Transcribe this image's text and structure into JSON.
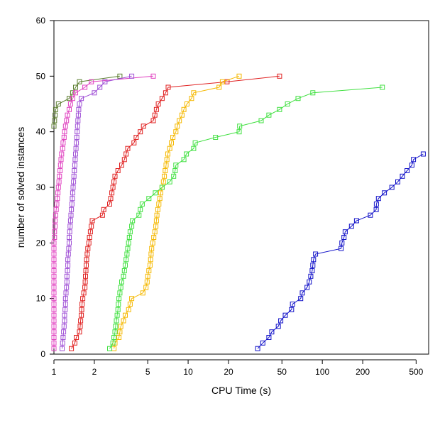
{
  "chart_data": {
    "type": "line",
    "title": "",
    "xlabel": "CPU Time (s)",
    "ylabel": "number of solved instances",
    "x_scale": "log",
    "xlim": [
      1,
      620
    ],
    "ylim": [
      0,
      60
    ],
    "x_ticks": [
      1,
      2,
      5,
      10,
      20,
      50,
      100,
      200,
      500
    ],
    "y_ticks": [
      0,
      10,
      20,
      30,
      40,
      50,
      60
    ],
    "grid": false,
    "legend": "none",
    "marker": "open-square",
    "series": [
      {
        "color": "#5a7d2e",
        "points": [
          [
            1.0,
            41
          ],
          [
            1.01,
            42
          ],
          [
            1.02,
            43
          ],
          [
            1.03,
            44
          ],
          [
            1.08,
            45
          ],
          [
            1.3,
            46
          ],
          [
            1.38,
            47
          ],
          [
            1.45,
            48
          ],
          [
            1.55,
            49
          ],
          [
            3.1,
            50
          ]
        ]
      },
      {
        "color": "#e040c0",
        "points": [
          [
            1.0,
            1
          ],
          [
            1.0,
            2
          ],
          [
            1.0,
            3
          ],
          [
            1.0,
            4
          ],
          [
            1.0,
            5
          ],
          [
            1.0,
            6
          ],
          [
            1.0,
            7
          ],
          [
            1.0,
            8
          ],
          [
            1.0,
            9
          ],
          [
            1.0,
            10
          ],
          [
            1.0,
            11
          ],
          [
            1.0,
            12
          ],
          [
            1.0,
            13
          ],
          [
            1.0,
            14
          ],
          [
            1.0,
            15
          ],
          [
            1.0,
            16
          ],
          [
            1.0,
            17
          ],
          [
            1.0,
            18
          ],
          [
            1.0,
            19
          ],
          [
            1.0,
            20
          ],
          [
            1.01,
            21
          ],
          [
            1.01,
            22
          ],
          [
            1.02,
            23
          ],
          [
            1.02,
            24
          ],
          [
            1.03,
            25
          ],
          [
            1.04,
            26
          ],
          [
            1.05,
            27
          ],
          [
            1.06,
            28
          ],
          [
            1.07,
            29
          ],
          [
            1.08,
            30
          ],
          [
            1.09,
            31
          ],
          [
            1.1,
            32
          ],
          [
            1.11,
            33
          ],
          [
            1.12,
            34
          ],
          [
            1.13,
            35
          ],
          [
            1.14,
            36
          ],
          [
            1.16,
            37
          ],
          [
            1.17,
            38
          ],
          [
            1.19,
            39
          ],
          [
            1.2,
            40
          ],
          [
            1.22,
            41
          ],
          [
            1.24,
            42
          ],
          [
            1.26,
            43
          ],
          [
            1.3,
            44
          ],
          [
            1.33,
            45
          ],
          [
            1.38,
            46
          ],
          [
            1.45,
            47
          ],
          [
            1.7,
            48
          ],
          [
            1.9,
            49
          ],
          [
            5.5,
            50
          ]
        ]
      },
      {
        "color": "#9f4fd6",
        "points": [
          [
            1.15,
            1
          ],
          [
            1.16,
            2
          ],
          [
            1.17,
            3
          ],
          [
            1.18,
            4
          ],
          [
            1.19,
            5
          ],
          [
            1.2,
            6
          ],
          [
            1.2,
            7
          ],
          [
            1.21,
            8
          ],
          [
            1.22,
            9
          ],
          [
            1.22,
            10
          ],
          [
            1.23,
            11
          ],
          [
            1.24,
            12
          ],
          [
            1.25,
            13
          ],
          [
            1.25,
            14
          ],
          [
            1.26,
            15
          ],
          [
            1.27,
            16
          ],
          [
            1.27,
            17
          ],
          [
            1.28,
            18
          ],
          [
            1.29,
            19
          ],
          [
            1.3,
            20
          ],
          [
            1.3,
            21
          ],
          [
            1.31,
            22
          ],
          [
            1.32,
            23
          ],
          [
            1.33,
            24
          ],
          [
            1.34,
            25
          ],
          [
            1.35,
            26
          ],
          [
            1.36,
            27
          ],
          [
            1.37,
            28
          ],
          [
            1.38,
            29
          ],
          [
            1.39,
            30
          ],
          [
            1.4,
            31
          ],
          [
            1.41,
            32
          ],
          [
            1.42,
            33
          ],
          [
            1.43,
            34
          ],
          [
            1.44,
            35
          ],
          [
            1.45,
            36
          ],
          [
            1.46,
            37
          ],
          [
            1.47,
            38
          ],
          [
            1.48,
            39
          ],
          [
            1.49,
            40
          ],
          [
            1.5,
            41
          ],
          [
            1.51,
            42
          ],
          [
            1.52,
            43
          ],
          [
            1.53,
            44
          ],
          [
            1.55,
            45
          ],
          [
            1.6,
            46
          ],
          [
            2.0,
            47
          ],
          [
            2.2,
            48
          ],
          [
            2.4,
            49
          ],
          [
            3.8,
            50
          ]
        ]
      },
      {
        "color": "#e02020",
        "points": [
          [
            1.35,
            1
          ],
          [
            1.43,
            2
          ],
          [
            1.47,
            3
          ],
          [
            1.55,
            4
          ],
          [
            1.57,
            5
          ],
          [
            1.58,
            6
          ],
          [
            1.6,
            7
          ],
          [
            1.61,
            8
          ],
          [
            1.62,
            9
          ],
          [
            1.64,
            10
          ],
          [
            1.67,
            11
          ],
          [
            1.7,
            12
          ],
          [
            1.71,
            13
          ],
          [
            1.72,
            14
          ],
          [
            1.73,
            15
          ],
          [
            1.74,
            16
          ],
          [
            1.75,
            17
          ],
          [
            1.77,
            18
          ],
          [
            1.79,
            19
          ],
          [
            1.82,
            20
          ],
          [
            1.84,
            21
          ],
          [
            1.87,
            22
          ],
          [
            1.9,
            23
          ],
          [
            1.93,
            24
          ],
          [
            2.3,
            25
          ],
          [
            2.35,
            26
          ],
          [
            2.6,
            27
          ],
          [
            2.65,
            28
          ],
          [
            2.7,
            29
          ],
          [
            2.75,
            30
          ],
          [
            2.8,
            31
          ],
          [
            2.85,
            32
          ],
          [
            3.0,
            33
          ],
          [
            3.2,
            34
          ],
          [
            3.35,
            35
          ],
          [
            3.45,
            36
          ],
          [
            3.55,
            37
          ],
          [
            3.95,
            38
          ],
          [
            4.1,
            39
          ],
          [
            4.4,
            40
          ],
          [
            4.65,
            41
          ],
          [
            5.5,
            42
          ],
          [
            5.65,
            43
          ],
          [
            5.8,
            44
          ],
          [
            6.0,
            45
          ],
          [
            6.4,
            46
          ],
          [
            6.8,
            47
          ],
          [
            7.1,
            48
          ],
          [
            19.5,
            49
          ],
          [
            48,
            50
          ]
        ]
      },
      {
        "color": "#f5b800",
        "points": [
          [
            2.8,
            1
          ],
          [
            2.85,
            2
          ],
          [
            3.05,
            3
          ],
          [
            3.1,
            4
          ],
          [
            3.15,
            5
          ],
          [
            3.3,
            6
          ],
          [
            3.4,
            7
          ],
          [
            3.6,
            8
          ],
          [
            3.7,
            9
          ],
          [
            3.8,
            10
          ],
          [
            4.6,
            11
          ],
          [
            4.85,
            12
          ],
          [
            4.95,
            13
          ],
          [
            5.0,
            14
          ],
          [
            5.1,
            15
          ],
          [
            5.2,
            16
          ],
          [
            5.25,
            17
          ],
          [
            5.3,
            18
          ],
          [
            5.35,
            19
          ],
          [
            5.45,
            20
          ],
          [
            5.55,
            21
          ],
          [
            5.65,
            22
          ],
          [
            5.75,
            23
          ],
          [
            5.8,
            24
          ],
          [
            5.85,
            25
          ],
          [
            5.95,
            26
          ],
          [
            6.05,
            27
          ],
          [
            6.15,
            28
          ],
          [
            6.25,
            29
          ],
          [
            6.4,
            30
          ],
          [
            6.55,
            31
          ],
          [
            6.65,
            32
          ],
          [
            6.75,
            33
          ],
          [
            6.85,
            34
          ],
          [
            6.95,
            35
          ],
          [
            7.05,
            36
          ],
          [
            7.3,
            37
          ],
          [
            7.5,
            38
          ],
          [
            7.7,
            39
          ],
          [
            8.1,
            40
          ],
          [
            8.3,
            41
          ],
          [
            8.6,
            42
          ],
          [
            9.0,
            43
          ],
          [
            9.3,
            44
          ],
          [
            9.8,
            45
          ],
          [
            10.6,
            46
          ],
          [
            11.0,
            47
          ],
          [
            17.0,
            48
          ],
          [
            18.0,
            49
          ],
          [
            24.0,
            50
          ]
        ]
      },
      {
        "color": "#40e040",
        "points": [
          [
            2.6,
            1
          ],
          [
            2.75,
            2
          ],
          [
            2.8,
            3
          ],
          [
            2.85,
            4
          ],
          [
            2.88,
            5
          ],
          [
            2.92,
            6
          ],
          [
            2.96,
            7
          ],
          [
            3.0,
            8
          ],
          [
            3.02,
            9
          ],
          [
            3.05,
            10
          ],
          [
            3.1,
            11
          ],
          [
            3.15,
            12
          ],
          [
            3.2,
            13
          ],
          [
            3.3,
            14
          ],
          [
            3.35,
            15
          ],
          [
            3.4,
            16
          ],
          [
            3.45,
            17
          ],
          [
            3.5,
            18
          ],
          [
            3.55,
            19
          ],
          [
            3.6,
            20
          ],
          [
            3.65,
            21
          ],
          [
            3.7,
            22
          ],
          [
            3.8,
            23
          ],
          [
            3.85,
            24
          ],
          [
            4.3,
            25
          ],
          [
            4.4,
            26
          ],
          [
            4.55,
            27
          ],
          [
            5.1,
            28
          ],
          [
            5.7,
            29
          ],
          [
            6.4,
            30
          ],
          [
            7.3,
            31
          ],
          [
            7.8,
            32
          ],
          [
            8.0,
            33
          ],
          [
            8.1,
            34
          ],
          [
            9.3,
            35
          ],
          [
            9.7,
            36
          ],
          [
            11.0,
            37
          ],
          [
            11.3,
            38
          ],
          [
            16.0,
            39
          ],
          [
            24.0,
            40
          ],
          [
            24.2,
            41
          ],
          [
            35.0,
            42
          ],
          [
            40.0,
            43
          ],
          [
            48.0,
            44
          ],
          [
            55.0,
            45
          ],
          [
            66.0,
            46
          ],
          [
            85.0,
            47
          ],
          [
            280.0,
            48
          ]
        ]
      },
      {
        "color": "#1010c8",
        "points": [
          [
            33,
            1
          ],
          [
            36,
            2
          ],
          [
            40,
            3
          ],
          [
            42,
            4
          ],
          [
            47,
            5
          ],
          [
            49,
            6
          ],
          [
            53,
            7
          ],
          [
            59,
            8
          ],
          [
            60,
            9
          ],
          [
            69,
            10
          ],
          [
            71,
            11
          ],
          [
            77,
            12
          ],
          [
            80,
            13
          ],
          [
            82,
            14
          ],
          [
            84,
            15
          ],
          [
            85,
            16
          ],
          [
            86,
            17
          ],
          [
            89,
            18
          ],
          [
            138,
            19
          ],
          [
            140,
            20
          ],
          [
            145,
            21
          ],
          [
            148,
            22
          ],
          [
            165,
            23
          ],
          [
            180,
            24
          ],
          [
            228,
            25
          ],
          [
            252,
            26
          ],
          [
            253,
            27
          ],
          [
            262,
            28
          ],
          [
            290,
            29
          ],
          [
            330,
            30
          ],
          [
            365,
            31
          ],
          [
            395,
            32
          ],
          [
            428,
            33
          ],
          [
            465,
            34
          ],
          [
            478,
            35
          ],
          [
            565,
            36
          ]
        ]
      }
    ]
  }
}
